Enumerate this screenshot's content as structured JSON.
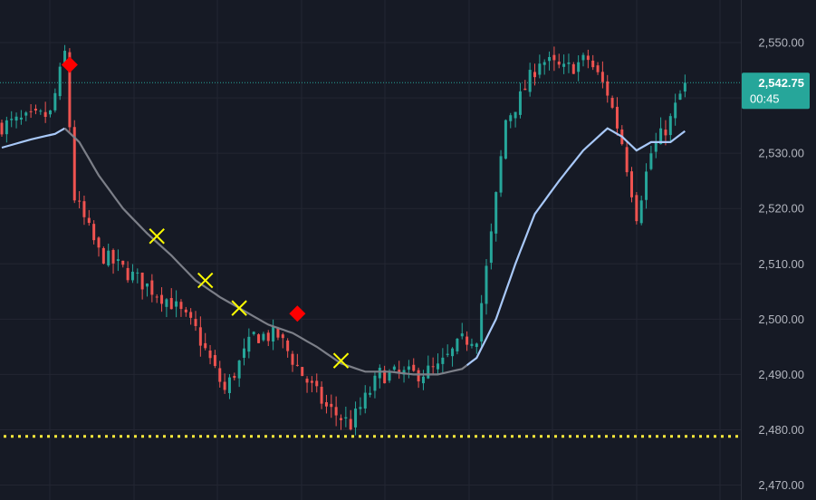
{
  "chart_data": {
    "type": "candlestick",
    "price_axis": {
      "ticks": [
        {
          "value": 2550,
          "label": "2,550.00"
        },
        {
          "value": 2540,
          "label": "2,540.00"
        },
        {
          "value": 2530,
          "label": "2,530.00"
        },
        {
          "value": 2520,
          "label": "2,520.00"
        },
        {
          "value": 2510,
          "label": "2,510.00"
        },
        {
          "value": 2500,
          "label": "2,500.00"
        },
        {
          "value": 2490,
          "label": "2,490.00"
        },
        {
          "value": 2480,
          "label": "2,480.00"
        },
        {
          "value": 2470,
          "label": "2,470.00"
        }
      ],
      "range": [
        2467.3,
        2557.7
      ],
      "side": "right"
    },
    "grid": true,
    "last_price": {
      "value": 2542.75,
      "label": "2,542.75",
      "countdown": "00:45"
    },
    "horizontal_level": 2478.8,
    "anchors": [
      {
        "i": 0,
        "p": 2535
      },
      {
        "i": 5,
        "p": 2536
      },
      {
        "i": 10,
        "p": 2537
      },
      {
        "i": 13,
        "p": 2548
      },
      {
        "i": 15,
        "p": 2522
      },
      {
        "i": 20,
        "p": 2512
      },
      {
        "i": 25,
        "p": 2509
      },
      {
        "i": 30,
        "p": 2506
      },
      {
        "i": 35,
        "p": 2503
      },
      {
        "i": 40,
        "p": 2498
      },
      {
        "i": 46,
        "p": 2487
      },
      {
        "i": 52,
        "p": 2497
      },
      {
        "i": 57,
        "p": 2497
      },
      {
        "i": 62,
        "p": 2490
      },
      {
        "i": 67,
        "p": 2484
      },
      {
        "i": 72,
        "p": 2481
      },
      {
        "i": 78,
        "p": 2490
      },
      {
        "i": 85,
        "p": 2490
      },
      {
        "i": 90,
        "p": 2491
      },
      {
        "i": 95,
        "p": 2496
      },
      {
        "i": 98,
        "p": 2497
      },
      {
        "i": 101,
        "p": 2515
      },
      {
        "i": 104,
        "p": 2536
      },
      {
        "i": 107,
        "p": 2540
      },
      {
        "i": 111,
        "p": 2547
      },
      {
        "i": 116,
        "p": 2545
      },
      {
        "i": 121,
        "p": 2547
      },
      {
        "i": 125,
        "p": 2541
      },
      {
        "i": 128,
        "p": 2532
      },
      {
        "i": 131,
        "p": 2519
      },
      {
        "i": 134,
        "p": 2530
      },
      {
        "i": 138,
        "p": 2536
      },
      {
        "i": 141,
        "p": 2542.75
      }
    ],
    "moving_average": [
      {
        "i": 0,
        "p": 2531
      },
      {
        "i": 6,
        "p": 2532.5
      },
      {
        "i": 11,
        "p": 2533.5
      },
      {
        "i": 13,
        "p": 2534.5
      },
      {
        "i": 16,
        "p": 2532
      },
      {
        "i": 20,
        "p": 2526
      },
      {
        "i": 25,
        "p": 2520
      },
      {
        "i": 30,
        "p": 2515.5
      },
      {
        "i": 35,
        "p": 2511.5
      },
      {
        "i": 40,
        "p": 2507
      },
      {
        "i": 45,
        "p": 2504
      },
      {
        "i": 50,
        "p": 2501.5
      },
      {
        "i": 55,
        "p": 2499
      },
      {
        "i": 60,
        "p": 2497.5
      },
      {
        "i": 65,
        "p": 2495
      },
      {
        "i": 70,
        "p": 2492
      },
      {
        "i": 75,
        "p": 2490.5
      },
      {
        "i": 80,
        "p": 2490.5
      },
      {
        "i": 85,
        "p": 2490
      },
      {
        "i": 90,
        "p": 2490
      },
      {
        "i": 95,
        "p": 2491
      },
      {
        "i": 98,
        "p": 2493
      },
      {
        "i": 102,
        "p": 2500
      },
      {
        "i": 106,
        "p": 2510
      },
      {
        "i": 110,
        "p": 2519
      },
      {
        "i": 115,
        "p": 2525
      },
      {
        "i": 120,
        "p": 2530.5
      },
      {
        "i": 125,
        "p": 2534.5
      },
      {
        "i": 128,
        "p": 2533
      },
      {
        "i": 131,
        "p": 2530.5
      },
      {
        "i": 134,
        "p": 2532
      },
      {
        "i": 138,
        "p": 2532
      },
      {
        "i": 141,
        "p": 2534
      }
    ],
    "diamond_markers": [
      {
        "i": 14,
        "p": 2546
      },
      {
        "i": 61,
        "p": 2501
      }
    ],
    "cross_markers": [
      {
        "i": 32,
        "p": 2515
      },
      {
        "i": 42,
        "p": 2507
      },
      {
        "i": 49,
        "p": 2502
      },
      {
        "i": 70,
        "p": 2492.5
      }
    ],
    "colors": {
      "background": "#161a25",
      "grid": "#232632",
      "up": "#26a69a",
      "down": "#ef5350",
      "ma_gray": "#7c7f88",
      "ma_blue": "#a8c8f8",
      "diamond": "#ff0000",
      "cross": "#ffff00",
      "level": "#ffeb3b",
      "last_price": "#26a69a",
      "axis_text": "#b2b5be"
    }
  }
}
